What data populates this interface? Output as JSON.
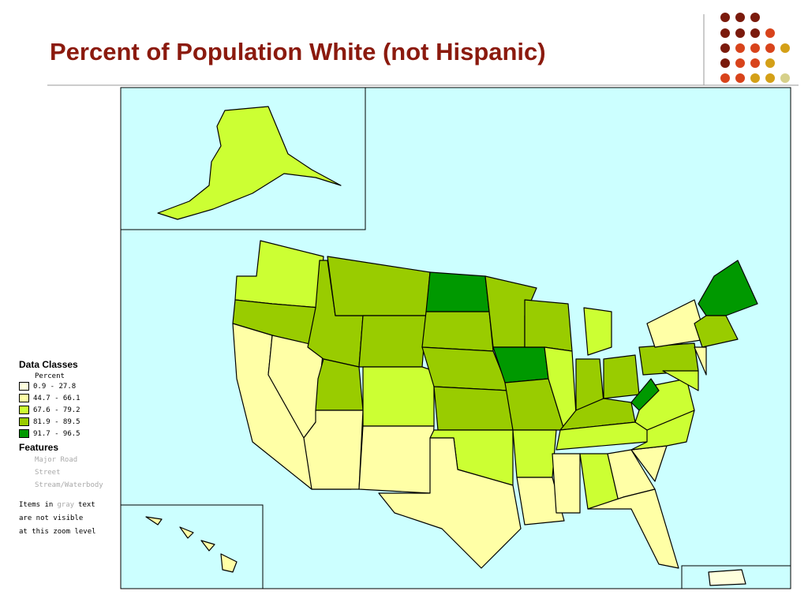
{
  "header": {
    "title": "Percent of Population White (not Hispanic)"
  },
  "legend": {
    "title": "Data Classes",
    "subtitle": "Percent",
    "classes": [
      {
        "label": "0.9 - 27.8",
        "color": "#ffffdd"
      },
      {
        "label": "44.7 - 66.1",
        "color": "#ffffa6"
      },
      {
        "label": "67.6 - 79.2",
        "color": "#ccff33"
      },
      {
        "label": "81.9 - 89.5",
        "color": "#99cc00"
      },
      {
        "label": "91.7 - 96.5",
        "color": "#009900"
      }
    ]
  },
  "features": {
    "title": "Features",
    "items": [
      "Major Road",
      "Street",
      "Stream/Waterbody"
    ]
  },
  "note": {
    "first": [
      "Items in",
      "gray",
      "text"
    ],
    "lines": [
      "are not visible",
      "at this zoom level"
    ]
  }
}
